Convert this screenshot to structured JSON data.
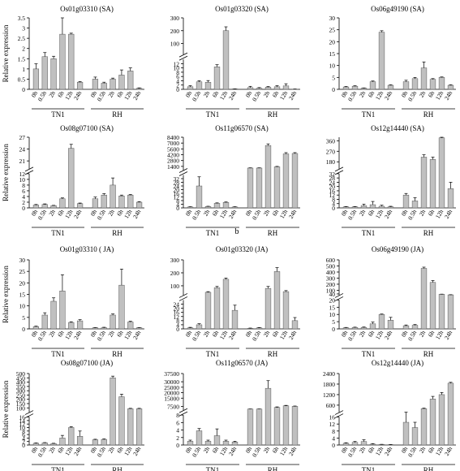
{
  "figure": {
    "xlabel_groups": [
      "TN1",
      "RH"
    ],
    "timepoints": [
      "0h",
      "0.5h",
      "2h",
      "6h",
      "12h",
      "24h"
    ],
    "ylabel": "Relative expression",
    "panel_b_label": "b"
  },
  "chart_data": [
    {
      "type": "bar",
      "title": "Os01g03310 (SA)",
      "ylabel": "Relative expression",
      "categories": [
        "0h",
        "0.5h",
        "2h",
        "6h",
        "12h",
        "24h",
        "0h",
        "0.5h",
        "2h",
        "6h",
        "12h",
        "24h"
      ],
      "groups": [
        "TN1",
        "RH"
      ],
      "values": [
        1.0,
        1.6,
        1.5,
        2.7,
        2.7,
        0.35,
        0.5,
        0.3,
        0.5,
        0.7,
        0.9,
        0.05
      ],
      "errors": [
        0.25,
        0.2,
        0.12,
        0.8,
        0.05,
        0.03,
        0.1,
        0.05,
        0.05,
        0.25,
        0.15,
        0.02
      ],
      "segments": [
        {
          "ylim": [
            0,
            3.5
          ],
          "ticks": [
            0,
            0.5,
            1,
            1.5,
            2,
            2.5,
            3,
            3.5
          ]
        }
      ]
    },
    {
      "type": "bar",
      "title": "Os01g03320 (SA)",
      "ylabel": "",
      "categories": [
        "0h",
        "0.5h",
        "2h",
        "6h",
        "12h",
        "24h",
        "0h",
        "0.5h",
        "2h",
        "6h",
        "12h",
        "24h"
      ],
      "groups": [
        "TN1",
        "RH"
      ],
      "values": [
        1.2,
        3.5,
        3.3,
        10.5,
        200,
        0.2,
        0.8,
        0.5,
        1.0,
        1.2,
        1.6,
        0.1
      ],
      "errors": [
        0.5,
        0.5,
        0.8,
        1.0,
        30,
        0.05,
        0.6,
        0.3,
        0.3,
        0.5,
        1.0,
        0.05
      ],
      "segments": [
        {
          "ylim": [
            0,
            14
          ],
          "ticks": [
            0,
            2,
            4,
            6,
            8,
            10,
            12
          ]
        },
        {
          "ylim": [
            14,
            300
          ],
          "ticks": [
            100,
            200,
            300
          ]
        }
      ]
    },
    {
      "type": "bar",
      "title": "Os06g49190 (SA)",
      "ylabel": "",
      "categories": [
        "0h",
        "0.5h",
        "2h",
        "6h",
        "12h",
        "24h",
        "0h",
        "0.5h",
        "2h",
        "6h",
        "12h",
        "24h"
      ],
      "groups": [
        "TN1",
        "RH"
      ],
      "values": [
        1.0,
        1.3,
        0.5,
        3.2,
        24.0,
        1.7,
        3.2,
        4.5,
        9.0,
        4.2,
        5.0,
        1.7
      ],
      "errors": [
        0.2,
        0.2,
        0.1,
        0.3,
        0.6,
        0.2,
        0.6,
        0.5,
        2.5,
        0.3,
        0.2,
        0.2
      ],
      "segments": [
        {
          "ylim": [
            0,
            30
          ],
          "ticks": [
            0,
            5,
            10,
            15,
            20,
            25,
            30
          ]
        }
      ]
    },
    {
      "type": "bar",
      "title": "Os08g07100 (SA)",
      "ylabel": "Relative expression",
      "categories": [
        "0h",
        "0.5h",
        "2h",
        "6h",
        "12h",
        "24h",
        "0h",
        "0.5h",
        "2h",
        "6h",
        "12h",
        "24h"
      ],
      "groups": [
        "TN1",
        "RH"
      ],
      "values": [
        1.0,
        1.2,
        0.8,
        3.2,
        24.2,
        1.5,
        3.2,
        4.5,
        8.0,
        4.2,
        4.5,
        2.0
      ],
      "errors": [
        0.2,
        0.2,
        0.1,
        0.3,
        1.0,
        0.2,
        0.6,
        0.5,
        2.5,
        0.3,
        0.2,
        0.2
      ],
      "segments": [
        {
          "ylim": [
            0,
            12
          ],
          "ticks": [
            0,
            2,
            4,
            6,
            8,
            10,
            12
          ]
        },
        {
          "ylim": [
            19,
            27
          ],
          "ticks": [
            21,
            24,
            27
          ]
        }
      ]
    },
    {
      "type": "bar",
      "title": "Os11g06570 (SA)",
      "ylabel": "",
      "categories": [
        "0h",
        "0.5h",
        "2h",
        "6h",
        "12h",
        "24h",
        "0h",
        "0.5h",
        "2h",
        "6h",
        "12h",
        "24h"
      ],
      "groups": [
        "TN1",
        "RH"
      ],
      "values": [
        1.0,
        24,
        1.5,
        5.0,
        6.0,
        1.0,
        1000,
        1000,
        6400,
        1300,
        4400,
        4500
      ],
      "errors": [
        0.3,
        10,
        0.3,
        0.5,
        0.5,
        0.3,
        50,
        50,
        400,
        100,
        300,
        200
      ],
      "segments": [
        {
          "ylim": [
            0,
            36
          ],
          "ticks": [
            0,
            4,
            8,
            12,
            16,
            20,
            24,
            28,
            32
          ]
        },
        {
          "ylim": [
            500,
            8400
          ],
          "ticks": [
            1400,
            2800,
            4200,
            5600,
            7000,
            8400
          ]
        }
      ]
    },
    {
      "type": "bar",
      "title": "Os12g14440 (SA)",
      "ylabel": "",
      "categories": [
        "0h",
        "0.5h",
        "2h",
        "6h",
        "12h",
        "24h",
        "0h",
        "0.5h",
        "2h",
        "6h",
        "12h",
        "24h"
      ],
      "groups": [
        "TN1",
        "RH"
      ],
      "values": [
        1.0,
        1.0,
        2.0,
        3.0,
        1.5,
        1.0,
        12.0,
        6.5,
        220,
        200,
        385,
        18.0
      ],
      "errors": [
        0.3,
        0.3,
        1.5,
        3.0,
        1.0,
        0.5,
        1.5,
        3.0,
        20,
        20,
        10,
        6.0
      ],
      "segments": [
        {
          "ylim": [
            0,
            32
          ],
          "ticks": [
            0,
            4,
            8,
            12,
            16,
            20,
            24,
            28,
            32
          ]
        },
        {
          "ylim": [
            120,
            390
          ],
          "ticks": [
            180,
            270,
            360
          ]
        }
      ]
    },
    {
      "type": "bar",
      "title": "Os01g03310 ( JA)",
      "ylabel": "Relative expression",
      "categories": [
        "0h",
        "0.5h",
        "2h",
        "6h",
        "12h",
        "24h",
        "0h",
        "0.5h",
        "2h",
        "6h",
        "12h",
        "24h"
      ],
      "groups": [
        "TN1",
        "RH"
      ],
      "values": [
        1.0,
        6.0,
        12.0,
        16.5,
        2.8,
        3.5,
        0.5,
        0.5,
        6.0,
        19.0,
        3.0,
        0.5
      ],
      "errors": [
        0.2,
        1.0,
        1.5,
        7.0,
        0.3,
        0.5,
        0.1,
        0.2,
        0.5,
        7.0,
        0.3,
        0.1
      ],
      "segments": [
        {
          "ylim": [
            0,
            30
          ],
          "ticks": [
            0,
            5,
            10,
            15,
            20,
            25,
            30
          ]
        }
      ]
    },
    {
      "type": "bar",
      "title": "Os01g03320 (JA)",
      "ylabel": "",
      "categories": [
        "0h",
        "0.5h",
        "2h",
        "6h",
        "12h",
        "24h",
        "0h",
        "0.5h",
        "2h",
        "6h",
        "12h",
        "24h"
      ],
      "groups": [
        "TN1",
        "RH"
      ],
      "values": [
        1.0,
        4.0,
        50,
        85,
        150,
        18,
        0.5,
        1.0,
        80,
        210,
        55,
        8.0
      ],
      "errors": [
        0.5,
        1.0,
        5,
        10,
        10,
        5,
        0.3,
        0.3,
        15,
        30,
        8,
        3
      ],
      "segments": [
        {
          "ylim": [
            0,
            28
          ],
          "ticks": [
            0,
            4,
            8,
            12,
            16,
            20,
            24
          ]
        },
        {
          "ylim": [
            28,
            300
          ],
          "ticks": [
            100,
            200,
            300
          ]
        }
      ]
    },
    {
      "type": "bar",
      "title": "Os06g49190 (JA)",
      "ylabel": "",
      "categories": [
        "0h",
        "0.5h",
        "2h",
        "6h",
        "12h",
        "24h",
        "0h",
        "0.5h",
        "2h",
        "6h",
        "12h",
        "24h"
      ],
      "groups": [
        "TN1",
        "RH"
      ],
      "values": [
        0.8,
        1.0,
        1.0,
        3.5,
        10.0,
        6.0,
        2.2,
        2.5,
        460,
        230,
        35,
        25
      ],
      "errors": [
        0.2,
        0.2,
        0.3,
        1.2,
        0.3,
        2.0,
        0.5,
        0.5,
        20,
        30,
        2,
        3
      ],
      "segments": [
        {
          "ylim": [
            0,
            20
          ],
          "ticks": [
            0,
            5,
            10,
            15,
            20
          ]
        },
        {
          "ylim": [
            20,
            600
          ],
          "ticks": [
            40,
            100,
            200,
            300,
            400,
            500,
            600
          ]
        }
      ]
    },
    {
      "type": "bar",
      "title": "Os08g07100 (JA)",
      "ylabel": "Relative expression",
      "categories": [
        "0h",
        "0.5h",
        "2h",
        "6h",
        "12h",
        "24h",
        "0h",
        "0.5h",
        "2h",
        "6h",
        "12h",
        "24h"
      ],
      "groups": [
        "TN1",
        "RH"
      ],
      "values": [
        1.0,
        1.2,
        0.8,
        4.0,
        10.0,
        5.0,
        3.0,
        3.2,
        450,
        230,
        90,
        90
      ],
      "errors": [
        0.2,
        0.2,
        0.2,
        1.5,
        0.5,
        3.0,
        0.3,
        0.3,
        20,
        30,
        5,
        5
      ],
      "segments": [
        {
          "ylim": [
            0,
            16
          ],
          "ticks": [
            0,
            2,
            4,
            6,
            8,
            10,
            12,
            14,
            16
          ]
        },
        {
          "ylim": [
            50,
            500
          ],
          "ticks": [
            100,
            150,
            200,
            250,
            300,
            350,
            400,
            450,
            500
          ]
        }
      ]
    },
    {
      "type": "bar",
      "title": "Os11g06570 (JA)",
      "ylabel": "",
      "categories": [
        "0h",
        "0.5h",
        "2h",
        "6h",
        "12h",
        "24h",
        "0h",
        "0.5h",
        "2h",
        "6h",
        "12h",
        "24h"
      ],
      "groups": [
        "TN1",
        "RH"
      ],
      "values": [
        1.0,
        3.8,
        1.0,
        2.5,
        1.0,
        0.8,
        5000,
        5000,
        24000,
        6500,
        8000,
        7500
      ],
      "errors": [
        0.3,
        0.6,
        0.3,
        1.8,
        0.3,
        0.2,
        100,
        100,
        7000,
        500,
        400,
        300
      ],
      "segments": [
        {
          "ylim": [
            0,
            8
          ],
          "ticks": [
            0,
            2,
            4,
            6,
            8
          ]
        },
        {
          "ylim": [
            4000,
            37500
          ],
          "ticks": [
            7500,
            15000,
            20000,
            25000,
            30000,
            37500
          ]
        }
      ]
    },
    {
      "type": "bar",
      "title": "Os12g14440 (JA)",
      "ylabel": "",
      "categories": [
        "0h",
        "0.5h",
        "2h",
        "6h",
        "12h",
        "24h",
        "0h",
        "0.5h",
        "2h",
        "6h",
        "12h",
        "24h"
      ],
      "groups": [
        "TN1",
        "RH"
      ],
      "values": [
        1.0,
        1.5,
        2.0,
        0.5,
        0.3,
        0.2,
        13.0,
        10.0,
        400,
        950,
        1200,
        1850
      ],
      "errors": [
        0.3,
        0.5,
        1.0,
        0.3,
        0.1,
        0.1,
        4.0,
        3.0,
        30,
        150,
        120,
        50
      ],
      "segments": [
        {
          "ylim": [
            0,
            16
          ],
          "ticks": [
            0,
            4,
            8,
            12,
            16
          ]
        },
        {
          "ylim": [
            200,
            2400
          ],
          "ticks": [
            600,
            1200,
            1800,
            2400
          ]
        }
      ]
    }
  ]
}
